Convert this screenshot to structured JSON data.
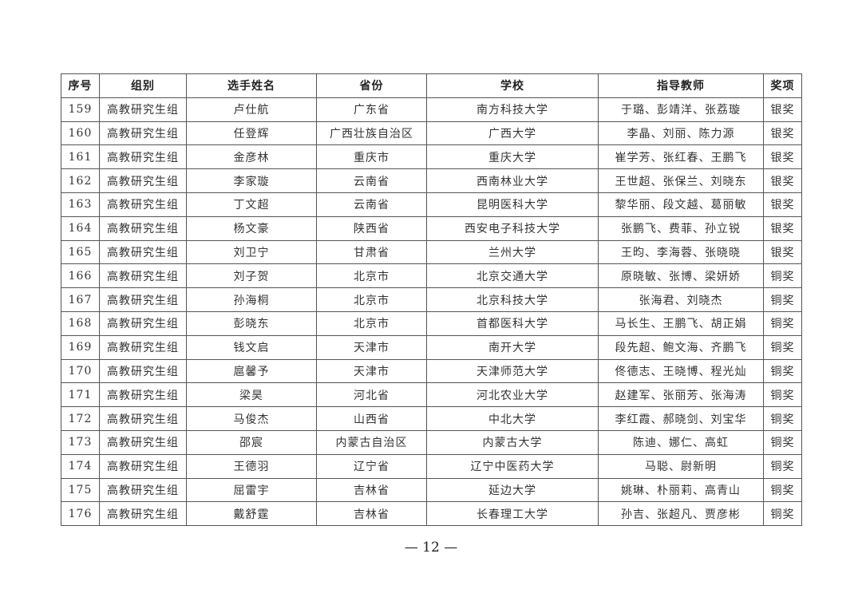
{
  "headers": [
    "序号",
    "组别",
    "选手姓名",
    "省份",
    "学校",
    "指导教师",
    "奖项"
  ],
  "rows": [
    [
      "159",
      "高教研究生组",
      "卢仕航",
      "广东省",
      "南方科技大学",
      "于璐、彭靖洋、张荔璇",
      "银奖"
    ],
    [
      "160",
      "高教研究生组",
      "任登辉",
      "广西壮族自治区",
      "广西大学",
      "李晶、刘丽、陈力源",
      "银奖"
    ],
    [
      "161",
      "高教研究生组",
      "金彦林",
      "重庆市",
      "重庆大学",
      "崔学芳、张红春、王鹏飞",
      "银奖"
    ],
    [
      "162",
      "高教研究生组",
      "李家璇",
      "云南省",
      "西南林业大学",
      "王世超、张保兰、刘晓东",
      "银奖"
    ],
    [
      "163",
      "高教研究生组",
      "丁文超",
      "云南省",
      "昆明医科大学",
      "黎华丽、段文越、葛丽敏",
      "银奖"
    ],
    [
      "164",
      "高教研究生组",
      "杨文豪",
      "陕西省",
      "西安电子科技大学",
      "张鹏飞、费菲、孙立锐",
      "银奖"
    ],
    [
      "165",
      "高教研究生组",
      "刘卫宁",
      "甘肃省",
      "兰州大学",
      "王昀、李海蓉、张晓晓",
      "银奖"
    ],
    [
      "166",
      "高教研究生组",
      "刘子贺",
      "北京市",
      "北京交通大学",
      "原晓敏、张博、梁妍娇",
      "铜奖"
    ],
    [
      "167",
      "高教研究生组",
      "孙海桐",
      "北京市",
      "北京科技大学",
      "张海君、刘晓杰",
      "铜奖"
    ],
    [
      "168",
      "高教研究生组",
      "彭晓东",
      "北京市",
      "首都医科大学",
      "马长生、王鹏飞、胡正娟",
      "铜奖"
    ],
    [
      "169",
      "高教研究生组",
      "钱文启",
      "天津市",
      "南开大学",
      "段先超、鲍文海、齐鹏飞",
      "铜奖"
    ],
    [
      "170",
      "高教研究生组",
      "扈馨予",
      "天津市",
      "天津师范大学",
      "佟德志、王晓博、程光灿",
      "铜奖"
    ],
    [
      "171",
      "高教研究生组",
      "梁昊",
      "河北省",
      "河北农业大学",
      "赵建军、张丽芳、张海涛",
      "铜奖"
    ],
    [
      "172",
      "高教研究生组",
      "马俊杰",
      "山西省",
      "中北大学",
      "李红霞、郝晓剑、刘宝华",
      "铜奖"
    ],
    [
      "173",
      "高教研究生组",
      "邵宸",
      "内蒙古自治区",
      "内蒙古大学",
      "陈迪、娜仁、高虹",
      "铜奖"
    ],
    [
      "174",
      "高教研究生组",
      "王德羽",
      "辽宁省",
      "辽宁中医药大学",
      "马聪、尉新明",
      "铜奖"
    ],
    [
      "175",
      "高教研究生组",
      "屈雷宇",
      "吉林省",
      "延边大学",
      "姚琳、朴丽莉、高青山",
      "铜奖"
    ],
    [
      "176",
      "高教研究生组",
      "戴舒霆",
      "吉林省",
      "长春理工大学",
      "孙吉、张超凡、贾彦彬",
      "铜奖"
    ]
  ],
  "page_number": "— 12 —"
}
